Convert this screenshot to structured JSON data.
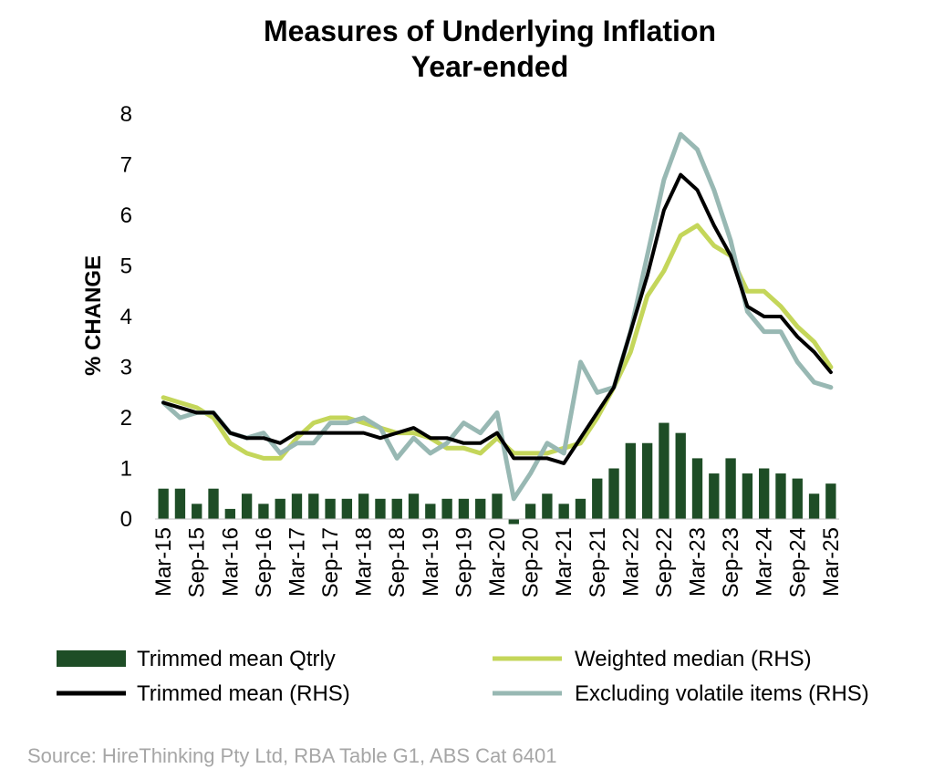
{
  "chart_data": {
    "type": "bar+line",
    "title_lines": [
      "Measures of Underlying Inflation",
      "Year-ended"
    ],
    "ylabel": "% CHANGE",
    "ylim": [
      0,
      8
    ],
    "yticks": [
      "0",
      "1",
      "2",
      "3",
      "4",
      "5",
      "6",
      "7",
      "8"
    ],
    "tick_labels": [
      "Mar-15",
      "Sep-15",
      "Mar-16",
      "Sep-16",
      "Mar-17",
      "Sep-17",
      "Mar-18",
      "Sep-18",
      "Mar-19",
      "Sep-19",
      "Mar-20",
      "Sep-20",
      "Mar-21",
      "Sep-21",
      "Mar-22",
      "Sep-22",
      "Mar-23",
      "Sep-23",
      "Mar-24",
      "Sep-24",
      "Mar-25"
    ],
    "categories": [
      "Mar-15",
      "Jun-15",
      "Sep-15",
      "Dec-15",
      "Mar-16",
      "Jun-16",
      "Sep-16",
      "Dec-16",
      "Mar-17",
      "Jun-17",
      "Sep-17",
      "Dec-17",
      "Mar-18",
      "Jun-18",
      "Sep-18",
      "Dec-18",
      "Mar-19",
      "Jun-19",
      "Sep-19",
      "Dec-19",
      "Mar-20",
      "Jun-20",
      "Sep-20",
      "Dec-20",
      "Mar-21",
      "Jun-21",
      "Sep-21",
      "Dec-21",
      "Mar-22",
      "Jun-22",
      "Sep-22",
      "Dec-22",
      "Mar-23",
      "Jun-23",
      "Sep-23",
      "Dec-23",
      "Mar-24",
      "Jun-24",
      "Sep-24",
      "Dec-24",
      "Mar-25"
    ],
    "series": [
      {
        "name": "Trimmed mean Qtrly",
        "kind": "bar",
        "color": "#1e4d26",
        "values": [
          0.6,
          0.6,
          0.3,
          0.6,
          0.2,
          0.5,
          0.3,
          0.4,
          0.5,
          0.5,
          0.4,
          0.4,
          0.5,
          0.4,
          0.4,
          0.5,
          0.3,
          0.4,
          0.4,
          0.4,
          0.5,
          -0.1,
          0.3,
          0.5,
          0.3,
          0.4,
          0.8,
          1.0,
          1.5,
          1.5,
          1.9,
          1.7,
          1.2,
          0.9,
          1.2,
          0.9,
          1.0,
          0.9,
          0.8,
          0.5,
          0.7
        ]
      },
      {
        "name": "Weighted median (RHS)",
        "kind": "line",
        "color": "#c4d65a",
        "values": [
          2.4,
          2.3,
          2.2,
          2.0,
          1.5,
          1.3,
          1.2,
          1.2,
          1.6,
          1.9,
          2.0,
          2.0,
          1.9,
          1.8,
          1.7,
          1.7,
          1.6,
          1.4,
          1.4,
          1.3,
          1.6,
          1.3,
          1.3,
          1.3,
          1.4,
          1.5,
          2.0,
          2.6,
          3.3,
          4.4,
          4.9,
          5.6,
          5.8,
          5.4,
          5.2,
          4.5,
          4.5,
          4.2,
          3.8,
          3.5,
          3.0
        ]
      },
      {
        "name": "Trimmed mean (RHS)",
        "kind": "line",
        "color": "#000000",
        "values": [
          2.3,
          2.2,
          2.1,
          2.1,
          1.7,
          1.6,
          1.6,
          1.5,
          1.7,
          1.7,
          1.7,
          1.7,
          1.7,
          1.6,
          1.7,
          1.8,
          1.6,
          1.6,
          1.5,
          1.5,
          1.7,
          1.2,
          1.2,
          1.2,
          1.1,
          1.6,
          2.1,
          2.6,
          3.7,
          4.8,
          6.1,
          6.8,
          6.5,
          5.8,
          5.2,
          4.2,
          4.0,
          4.0,
          3.6,
          3.3,
          2.9
        ]
      },
      {
        "name": "Excluding volatile items (RHS)",
        "kind": "line",
        "color": "#98b8b3",
        "values": [
          2.3,
          2.0,
          2.1,
          2.1,
          1.7,
          1.6,
          1.7,
          1.3,
          1.5,
          1.5,
          1.9,
          1.9,
          2.0,
          1.8,
          1.2,
          1.6,
          1.3,
          1.5,
          1.9,
          1.7,
          2.1,
          0.4,
          0.9,
          1.5,
          1.3,
          3.1,
          2.5,
          2.6,
          3.7,
          5.2,
          6.7,
          7.6,
          7.3,
          6.5,
          5.5,
          4.1,
          3.7,
          3.7,
          3.1,
          2.7,
          2.6
        ]
      }
    ],
    "legend": {
      "trimmed_mean_qtrly": "Trimmed mean Qtrly",
      "weighted_median": "Weighted median (RHS)",
      "trimmed_mean": "Trimmed mean (RHS)",
      "excluding_volatile": "Excluding volatile items (RHS)"
    },
    "grid": false,
    "legend_position": "bottom"
  },
  "source": "Source: HireThinking Pty Ltd, RBA Table G1, ABS Cat 6401"
}
